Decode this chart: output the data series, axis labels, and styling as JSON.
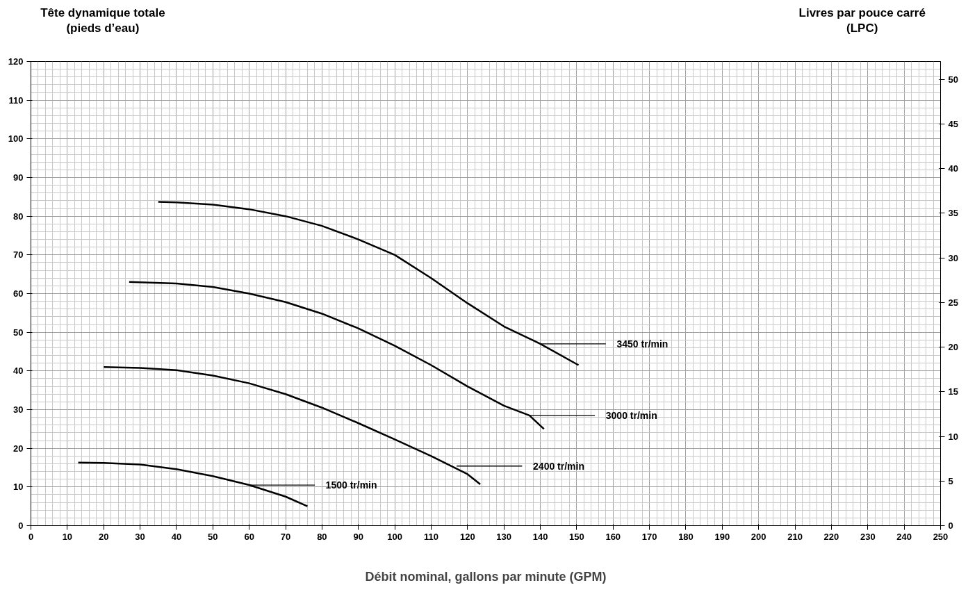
{
  "chart_data": {
    "type": "line",
    "xlabel": "Débit nominal, gallons par minute (GPM)",
    "ylabel": "Tête dynamique totale\n(pieds d’eau)",
    "y2label": "Livres par pouce carré\n(LPC)",
    "xlim": [
      0,
      250
    ],
    "xticks": [
      0,
      10,
      20,
      30,
      40,
      50,
      60,
      70,
      80,
      90,
      100,
      110,
      120,
      130,
      140,
      150,
      160,
      170,
      180,
      190,
      200,
      210,
      220,
      230,
      240,
      250
    ],
    "ylim": [
      0,
      120
    ],
    "yticks": [
      0,
      10,
      20,
      30,
      40,
      50,
      60,
      70,
      80,
      90,
      100,
      110,
      120
    ],
    "y2lim": [
      0,
      52
    ],
    "y2ticks": [
      0,
      5,
      10,
      15,
      20,
      25,
      30,
      35,
      40,
      45,
      50
    ],
    "grid": true,
    "line_style": "solid",
    "series": [
      {
        "color": "#000000",
        "x": [
          35,
          40,
          50,
          60,
          70,
          80,
          90,
          100,
          110,
          120,
          130,
          140,
          150.5
        ],
        "values": [
          83.7,
          83.6,
          83,
          81.8,
          80,
          77.5,
          74,
          70,
          64,
          57.5,
          51.5,
          47,
          41.5
        ]
      },
      {
        "color": "#000000",
        "x": [
          27,
          40,
          50,
          60,
          70,
          80,
          90,
          100,
          110,
          120,
          130,
          137,
          141
        ],
        "values": [
          63,
          62.6,
          61.7,
          60,
          57.8,
          54.8,
          51,
          46.5,
          41.5,
          36,
          31,
          28.5,
          25
        ]
      },
      {
        "color": "#000000",
        "x": [
          20,
          30,
          40,
          50,
          60,
          70,
          80,
          90,
          100,
          110,
          120,
          123.5
        ],
        "values": [
          41,
          40.8,
          40.2,
          38.8,
          36.8,
          34,
          30.5,
          26.5,
          22.3,
          18,
          13.3,
          10.7
        ]
      },
      {
        "color": "#000000",
        "x": [
          13,
          20,
          30,
          40,
          50,
          60,
          70,
          76
        ],
        "values": [
          16.3,
          16.2,
          15.8,
          14.6,
          12.8,
          10.5,
          7.5,
          5
        ]
      }
    ],
    "annotations": [
      {
        "text": "3450 tr/min",
        "x": 140,
        "y": 47
      },
      {
        "text": "3000 tr/min",
        "x": 137,
        "y": 28.5
      },
      {
        "text": "2400 tr/min",
        "x": 117,
        "y": 15.4
      },
      {
        "text": "1500 tr/min",
        "x": 60,
        "y": 10.5
      }
    ]
  }
}
